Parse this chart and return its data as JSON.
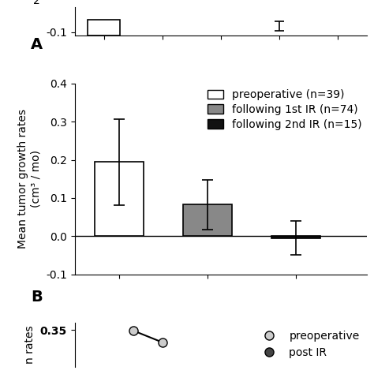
{
  "bar_values": [
    0.194,
    0.083,
    -0.005
  ],
  "bar_errors": [
    0.112,
    0.065,
    0.045
  ],
  "bar_colors": [
    "#ffffff",
    "#888888",
    "#111111"
  ],
  "bar_edgecolors": [
    "#000000",
    "#000000",
    "#000000"
  ],
  "legend_labels": [
    "preoperative (n=39)",
    "following 1st IR (n=74)",
    "following 2nd IR (n=15)"
  ],
  "legend_facecolors": [
    "#ffffff",
    "#888888",
    "#111111"
  ],
  "ylabel_B": "Mean tumor growth rates\n(cm³ / mo)",
  "ylim_B": [
    -0.1,
    0.4
  ],
  "yticks_B": [
    -0.1,
    0.0,
    0.1,
    0.2,
    0.3,
    0.4
  ],
  "panel_A_label": "A",
  "panel_B_label": "B",
  "panel_A_ytick_label": "-0.1",
  "panel_A_bar_value": 0.0,
  "panel_A_error": 0.08,
  "panel_C_ytick": "0.35",
  "ylabel_C": "n rates",
  "legend_C_labels": [
    "preoperative",
    "post IR"
  ],
  "background_color": "#ffffff",
  "bar_width": 0.55,
  "capsize": 5,
  "ylabel_fontsize": 10,
  "tick_fontsize": 10,
  "legend_fontsize": 10,
  "panel_label_fontsize": 14
}
